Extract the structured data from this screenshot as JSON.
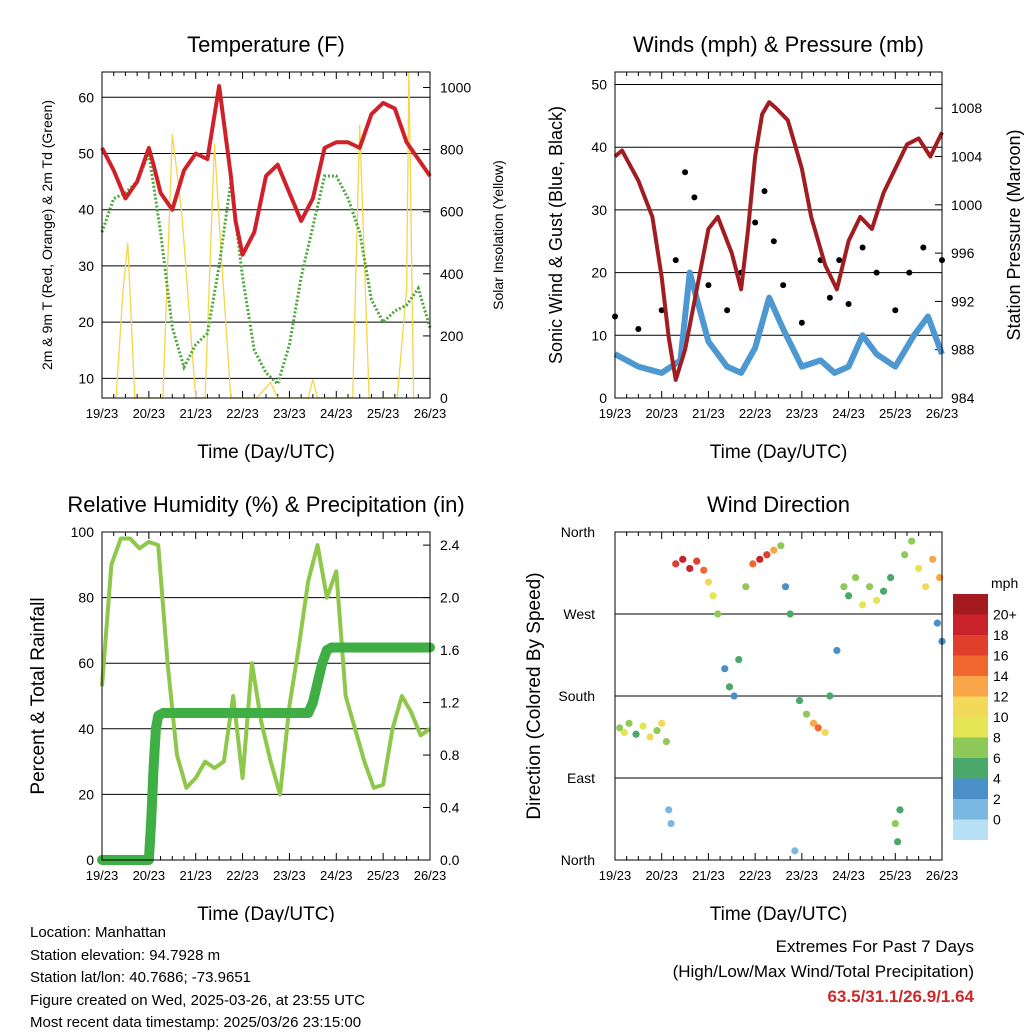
{
  "chart_data": [
    {
      "type": "line",
      "title": "Temperature (F)",
      "xlabel": "Time (Day/UTC)",
      "ylabel": "2m & 9m T (Red, Orange) & 2m Td (Green)",
      "y2label": "Solar Insolation (Yellow)",
      "x_ticks": [
        "19/23",
        "20/23",
        "21/23",
        "22/23",
        "23/23",
        "24/23",
        "25/23",
        "26/23"
      ],
      "ylim": [
        6.5,
        64.5
      ],
      "y_ticks": [
        10,
        20,
        30,
        40,
        50,
        60
      ],
      "y2lim": [
        0,
        1050
      ],
      "y2_ticks": [
        0,
        200,
        400,
        600,
        800,
        1000
      ],
      "grid": true,
      "colors": {
        "temp": "#d0202a",
        "dew": "#4aa83a",
        "solar": "#f7d54a"
      },
      "series": [
        {
          "name": "2m & 9m T",
          "axis": "left",
          "x": [
            0,
            0.25,
            0.5,
            0.75,
            1.0,
            1.1,
            1.25,
            1.5,
            1.75,
            2.0,
            2.25,
            2.5,
            2.75,
            2.85,
            3.0,
            3.25,
            3.5,
            3.75,
            4.0,
            4.25,
            4.5,
            4.75,
            5.0,
            5.25,
            5.5,
            5.75,
            6.0,
            6.25,
            6.5,
            6.75,
            7.0
          ],
          "y": [
            51,
            47,
            42,
            45,
            51,
            48,
            43,
            40,
            47,
            50,
            49,
            62,
            46,
            38,
            32,
            36,
            46,
            48,
            43,
            38,
            42,
            51,
            52,
            52,
            51,
            57,
            59,
            58,
            52,
            49,
            46
          ]
        },
        {
          "name": "2m Td",
          "axis": "left",
          "x": [
            0,
            0.25,
            0.5,
            0.75,
            1.0,
            1.25,
            1.5,
            1.75,
            2.0,
            2.25,
            2.5,
            2.75,
            3.0,
            3.25,
            3.5,
            3.75,
            4.0,
            4.25,
            4.5,
            4.75,
            5.0,
            5.25,
            5.5,
            5.75,
            6.0,
            6.25,
            6.5,
            6.75,
            7.0
          ],
          "y": [
            36,
            42,
            43,
            45,
            50,
            36,
            19,
            12,
            16,
            18,
            30,
            45,
            28,
            15,
            11,
            9,
            16,
            28,
            37,
            46,
            46,
            42,
            36,
            24,
            20,
            22,
            23,
            26,
            19
          ]
        },
        {
          "name": "Solar Insolation",
          "axis": "right",
          "x": [
            0.3,
            0.45,
            0.55,
            0.7,
            1.3,
            1.5,
            1.7,
            2.0,
            2.2,
            2.4,
            2.55,
            2.75,
            3.3,
            3.6,
            3.75,
            4.4,
            4.5,
            4.6,
            4.8,
            5.35,
            5.5,
            5.7,
            6.3,
            6.5,
            6.55,
            6.65
          ],
          "y": [
            0,
            350,
            500,
            0,
            0,
            850,
            600,
            0,
            0,
            820,
            450,
            0,
            0,
            50,
            0,
            0,
            60,
            0,
            0,
            0,
            880,
            0,
            0,
            350,
            1050,
            0
          ]
        }
      ]
    },
    {
      "type": "scatter",
      "title": "Winds (mph) & Pressure (mb)",
      "xlabel": "Time (Day/UTC)",
      "ylabel": "Sonic Wind & Gust (Blue, Black)",
      "y2label": "Station Pressure (Maroon)",
      "x_ticks": [
        "19/23",
        "20/23",
        "21/23",
        "22/23",
        "23/23",
        "24/23",
        "25/23",
        "26/23"
      ],
      "ylim": [
        0,
        52
      ],
      "y_ticks": [
        0,
        10,
        20,
        30,
        40,
        50
      ],
      "y2lim": [
        984,
        1011
      ],
      "y2_ticks": [
        984,
        988,
        992,
        996,
        1000,
        1004,
        1008
      ],
      "grid": true,
      "colors": {
        "wind": "#4e98d2",
        "gust": "#000000",
        "pressure": "#a01e22"
      },
      "series": [
        {
          "name": "Sonic Wind",
          "axis": "left",
          "x": [
            0,
            0.5,
            1.0,
            1.4,
            1.6,
            2.0,
            2.4,
            2.7,
            3.0,
            3.3,
            3.6,
            4.0,
            4.4,
            4.7,
            5.0,
            5.3,
            5.6,
            6.0,
            6.4,
            6.7,
            7.0
          ],
          "y": [
            7,
            5,
            4,
            6,
            20,
            9,
            5,
            4,
            8,
            16,
            11,
            5,
            6,
            4,
            5,
            10,
            7,
            5,
            10,
            13,
            7
          ]
        },
        {
          "name": "Gust",
          "axis": "left",
          "x": [
            0,
            0.5,
            1.0,
            1.3,
            1.5,
            1.7,
            2.0,
            2.4,
            2.7,
            3.0,
            3.2,
            3.4,
            3.6,
            4.0,
            4.4,
            4.6,
            4.8,
            5.0,
            5.3,
            5.6,
            6.0,
            6.3,
            6.6,
            7.0
          ],
          "y": [
            13,
            11,
            14,
            22,
            36,
            32,
            18,
            14,
            20,
            28,
            33,
            25,
            18,
            12,
            22,
            16,
            22,
            15,
            24,
            20,
            14,
            20,
            24,
            22
          ]
        },
        {
          "name": "Station Pressure",
          "axis": "right",
          "x": [
            0,
            0.15,
            0.5,
            0.8,
            1.0,
            1.15,
            1.3,
            1.5,
            1.75,
            2.0,
            2.2,
            2.5,
            2.7,
            2.85,
            3.0,
            3.15,
            3.3,
            3.45,
            3.7,
            4.0,
            4.2,
            4.5,
            4.75,
            5.0,
            5.25,
            5.5,
            5.75,
            6.0,
            6.25,
            6.5,
            6.75,
            7.0
          ],
          "y": [
            1004,
            1004.5,
            1002,
            999,
            994,
            989,
            985.5,
            988,
            993,
            998,
            999,
            996,
            993,
            998,
            1004,
            1007.5,
            1008.5,
            1008,
            1007,
            1003,
            999,
            995,
            993,
            997,
            999,
            998,
            1001,
            1003,
            1005,
            1005.5,
            1004,
            1006
          ]
        }
      ]
    },
    {
      "type": "line",
      "title": "Relative Humidity (%) & Precipitation (in)",
      "xlabel": "Time (Day/UTC)",
      "ylabel": "Percent & Total Rainfall",
      "x_ticks": [
        "19/23",
        "20/23",
        "21/23",
        "22/23",
        "23/23",
        "24/23",
        "25/23",
        "26/23"
      ],
      "ylim": [
        0,
        100
      ],
      "y_ticks": [
        0,
        20,
        40,
        60,
        80,
        100
      ],
      "y2lim": [
        0,
        2.5
      ],
      "y2_ticks": [
        "0.0",
        "0.4",
        "0.8",
        "1.2",
        "1.6",
        "2.0",
        "2.4"
      ],
      "grid": true,
      "colors": {
        "rh": "#8ec84a",
        "precip": "#3fae45"
      },
      "series": [
        {
          "name": "Relative Humidity",
          "axis": "left",
          "x": [
            0,
            0.2,
            0.4,
            0.6,
            0.8,
            1.0,
            1.2,
            1.4,
            1.6,
            1.8,
            2.0,
            2.2,
            2.4,
            2.6,
            2.8,
            3.0,
            3.2,
            3.4,
            3.6,
            3.8,
            4.0,
            4.2,
            4.4,
            4.6,
            4.8,
            5.0,
            5.2,
            5.4,
            5.6,
            5.8,
            6.0,
            6.2,
            6.4,
            6.6,
            6.8,
            7.0
          ],
          "y": [
            53,
            90,
            98,
            98,
            95,
            97,
            96,
            60,
            32,
            22,
            25,
            30,
            28,
            30,
            50,
            25,
            60,
            42,
            30,
            20,
            47,
            65,
            85,
            96,
            80,
            88,
            50,
            40,
            30,
            22,
            23,
            40,
            50,
            45,
            38,
            40
          ]
        },
        {
          "name": "Precipitation",
          "axis": "right",
          "x": [
            0,
            0.5,
            1.0,
            1.05,
            1.1,
            1.15,
            1.2,
            1.3,
            1.5,
            2.0,
            3.0,
            4.0,
            4.4,
            4.5,
            4.6,
            4.7,
            4.8,
            4.9,
            5.0,
            6.0,
            7.0
          ],
          "y": [
            0,
            0,
            0,
            0.3,
            0.7,
            1.0,
            1.1,
            1.12,
            1.12,
            1.12,
            1.12,
            1.12,
            1.12,
            1.2,
            1.35,
            1.5,
            1.6,
            1.62,
            1.62,
            1.62,
            1.62
          ]
        }
      ]
    },
    {
      "type": "scatter",
      "title": "Wind Direction",
      "xlabel": "Time (Day/UTC)",
      "ylabel": "Direction (Colored By Speed)",
      "x_ticks": [
        "19/23",
        "20/23",
        "21/23",
        "22/23",
        "23/23",
        "24/23",
        "25/23",
        "26/23"
      ],
      "y_ticks": [
        "North",
        "East",
        "South",
        "West",
        "North"
      ],
      "ylim": [
        0,
        360
      ],
      "grid": true,
      "colorbar": {
        "title": "mph",
        "labels": [
          "20+",
          "18",
          "16",
          "14",
          "12",
          "10",
          "8",
          "6",
          "4",
          "2",
          "0"
        ],
        "colors": [
          "#a51a1f",
          "#c9222a",
          "#e03f2b",
          "#f0682f",
          "#f9a64a",
          "#f2d95a",
          "#e3e552",
          "#8fc95a",
          "#4aa86a",
          "#4a8fc8",
          "#7ab8e2",
          "#b8e0f5"
        ]
      },
      "points": [
        {
          "x": 0.1,
          "y": 145,
          "speed": 8
        },
        {
          "x": 0.2,
          "y": 140,
          "speed": 10
        },
        {
          "x": 0.3,
          "y": 150,
          "speed": 9
        },
        {
          "x": 0.45,
          "y": 138,
          "speed": 7
        },
        {
          "x": 0.6,
          "y": 147,
          "speed": 11
        },
        {
          "x": 0.75,
          "y": 135,
          "speed": 12
        },
        {
          "x": 0.9,
          "y": 142,
          "speed": 9
        },
        {
          "x": 1.0,
          "y": 150,
          "speed": 13
        },
        {
          "x": 1.1,
          "y": 130,
          "speed": 8
        },
        {
          "x": 1.15,
          "y": 55,
          "speed": 3
        },
        {
          "x": 1.2,
          "y": 40,
          "speed": 2
        },
        {
          "x": 1.3,
          "y": 325,
          "speed": 19
        },
        {
          "x": 1.45,
          "y": 330,
          "speed": 20
        },
        {
          "x": 1.6,
          "y": 320,
          "speed": 21
        },
        {
          "x": 1.75,
          "y": 328,
          "speed": 18
        },
        {
          "x": 1.9,
          "y": 318,
          "speed": 16
        },
        {
          "x": 2.0,
          "y": 305,
          "speed": 12
        },
        {
          "x": 2.1,
          "y": 290,
          "speed": 10
        },
        {
          "x": 2.2,
          "y": 270,
          "speed": 8
        },
        {
          "x": 2.35,
          "y": 210,
          "speed": 5
        },
        {
          "x": 2.45,
          "y": 190,
          "speed": 6
        },
        {
          "x": 2.55,
          "y": 180,
          "speed": 4
        },
        {
          "x": 2.65,
          "y": 220,
          "speed": 7
        },
        {
          "x": 2.8,
          "y": 300,
          "speed": 9
        },
        {
          "x": 2.95,
          "y": 325,
          "speed": 17
        },
        {
          "x": 3.1,
          "y": 330,
          "speed": 20
        },
        {
          "x": 3.25,
          "y": 335,
          "speed": 19
        },
        {
          "x": 3.4,
          "y": 340,
          "speed": 15
        },
        {
          "x": 3.55,
          "y": 345,
          "speed": 9
        },
        {
          "x": 3.65,
          "y": 300,
          "speed": 5
        },
        {
          "x": 3.75,
          "y": 270,
          "speed": 7
        },
        {
          "x": 3.85,
          "y": 10,
          "speed": 3
        },
        {
          "x": 3.95,
          "y": 175,
          "speed": 7
        },
        {
          "x": 4.1,
          "y": 160,
          "speed": 9
        },
        {
          "x": 4.25,
          "y": 150,
          "speed": 14
        },
        {
          "x": 4.35,
          "y": 145,
          "speed": 16
        },
        {
          "x": 4.5,
          "y": 140,
          "speed": 12
        },
        {
          "x": 4.6,
          "y": 180,
          "speed": 6
        },
        {
          "x": 4.75,
          "y": 230,
          "speed": 5
        },
        {
          "x": 4.9,
          "y": 300,
          "speed": 8
        },
        {
          "x": 5.0,
          "y": 290,
          "speed": 7
        },
        {
          "x": 5.15,
          "y": 310,
          "speed": 9
        },
        {
          "x": 5.3,
          "y": 280,
          "speed": 10
        },
        {
          "x": 5.45,
          "y": 300,
          "speed": 8
        },
        {
          "x": 5.6,
          "y": 285,
          "speed": 11
        },
        {
          "x": 5.75,
          "y": 295,
          "speed": 7
        },
        {
          "x": 5.9,
          "y": 310,
          "speed": 6
        },
        {
          "x": 6.0,
          "y": 40,
          "speed": 8
        },
        {
          "x": 6.05,
          "y": 20,
          "speed": 6
        },
        {
          "x": 6.1,
          "y": 55,
          "speed": 7
        },
        {
          "x": 6.2,
          "y": 335,
          "speed": 9
        },
        {
          "x": 6.35,
          "y": 350,
          "speed": 8
        },
        {
          "x": 6.5,
          "y": 320,
          "speed": 10
        },
        {
          "x": 6.65,
          "y": 300,
          "speed": 12
        },
        {
          "x": 6.8,
          "y": 330,
          "speed": 14
        },
        {
          "x": 6.95,
          "y": 310,
          "speed": 15
        },
        {
          "x": 6.9,
          "y": 260,
          "speed": 5
        },
        {
          "x": 7.0,
          "y": 240,
          "speed": 4
        }
      ]
    }
  ],
  "footer": {
    "location": "Location: Manhattan",
    "elevation": "Station elevation: 94.7928 m",
    "latlon": "Station lat/lon: 40.7686; -73.9651",
    "created": "Figure created on Wed, 2025-03-26, at 23:55 UTC",
    "recent": "Most recent data timestamp: 2025/03/26 23:15:00",
    "extremes_title": "Extremes For Past 7 Days",
    "extremes_sub": "(High/Low/Max Wind/Total Precipitation)",
    "extremes_values": "63.5/31.1/26.9/1.64"
  }
}
